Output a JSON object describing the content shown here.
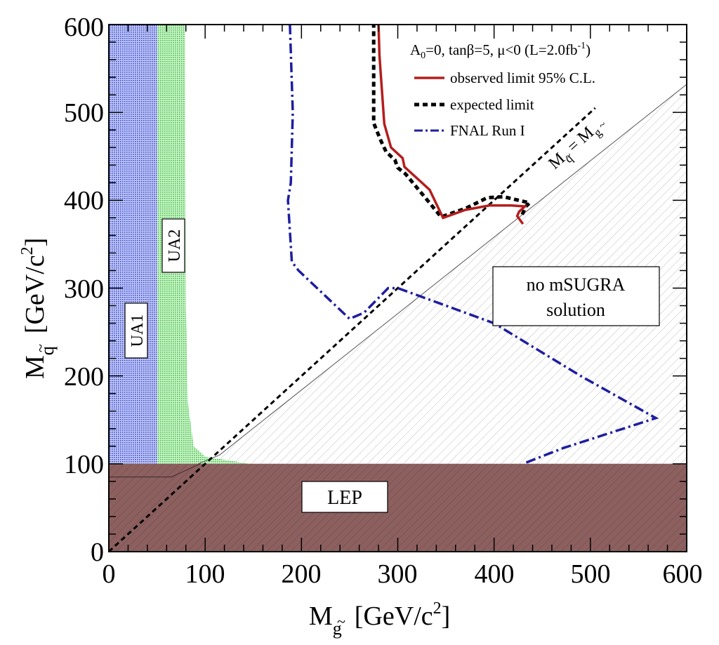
{
  "chart_data": {
    "type": "line",
    "xaxis": {
      "label_main": "M",
      "label_sub": "g",
      "label_tilde": "~",
      "label_unit_open": "[GeV/c",
      "label_unit_sup": "2",
      "label_unit_close": "]",
      "range": [
        0,
        600
      ],
      "ticks": [
        0,
        100,
        200,
        300,
        400,
        500,
        600
      ],
      "tick_labels": [
        "0",
        "100",
        "200",
        "300",
        "400",
        "500",
        "600"
      ]
    },
    "yaxis": {
      "label_main": "M",
      "label_sub": "q",
      "label_tilde": "~",
      "label_unit_open": "[GeV/c",
      "label_unit_sup": "2",
      "label_unit_close": "]",
      "range": [
        0,
        600
      ],
      "ticks": [
        0,
        100,
        200,
        300,
        400,
        500,
        600
      ],
      "tick_labels": [
        "0",
        "100",
        "200",
        "300",
        "400",
        "500",
        "600"
      ]
    },
    "legend": {
      "header_a0": "A",
      "header_a0_sub": "0",
      "header_text": "=0, tanβ=5, μ<0  (L=2.0fb",
      "header_sup": "-1",
      "header_close": ")",
      "placement": "top-right"
    },
    "series": [
      {
        "name": "observed limit 95% C.L.",
        "color": "#b41e1e",
        "style": "solid",
        "x": [
          280,
          281,
          286,
          293,
          305,
          307,
          333,
          347,
          370,
          395,
          418,
          432,
          426,
          424,
          430
        ],
        "y": [
          600,
          565,
          487,
          460,
          448,
          438,
          412,
          380,
          389,
          394,
          394,
          393,
          387,
          382,
          373
        ]
      },
      {
        "name": "expected limit",
        "color": "#000000",
        "style": "dashed",
        "x": [
          275,
          275,
          282,
          288,
          297,
          300,
          308,
          330,
          345,
          371,
          393,
          410,
          437,
          433,
          429
        ],
        "y": [
          602,
          488,
          469,
          455,
          446,
          437,
          430,
          401,
          381,
          391,
          403,
          404,
          397,
          393,
          383
        ]
      },
      {
        "name": "FNAL Run I",
        "color": "#1e1ea0",
        "style": "dashdot",
        "x": [
          188,
          191,
          189,
          186,
          190,
          197,
          250,
          265,
          290,
          300,
          350,
          400,
          490,
          568,
          520,
          472,
          430
        ],
        "y": [
          600,
          500,
          420,
          400,
          330,
          320,
          265,
          272,
          300,
          300,
          280,
          260,
          200,
          152,
          135,
          118,
          100
        ]
      }
    ],
    "regions": [
      {
        "name": "UA1",
        "label": "UA1",
        "color": "#4a5ad8"
      },
      {
        "name": "UA2",
        "label": "UA2",
        "color": "#4fd04f"
      },
      {
        "name": "LEP",
        "label": "LEP",
        "color": "#8a5a5a"
      },
      {
        "name": "no-mSUGRA",
        "label_line1": "no mSUGRA",
        "label_line2": "solution",
        "color": "#bbbbbb"
      }
    ],
    "diagonal": {
      "label_a": "M",
      "label_a_sub": "q",
      "label_eq": "=",
      "label_b": "M",
      "label_b_sub": "g",
      "tilde": "~"
    }
  }
}
